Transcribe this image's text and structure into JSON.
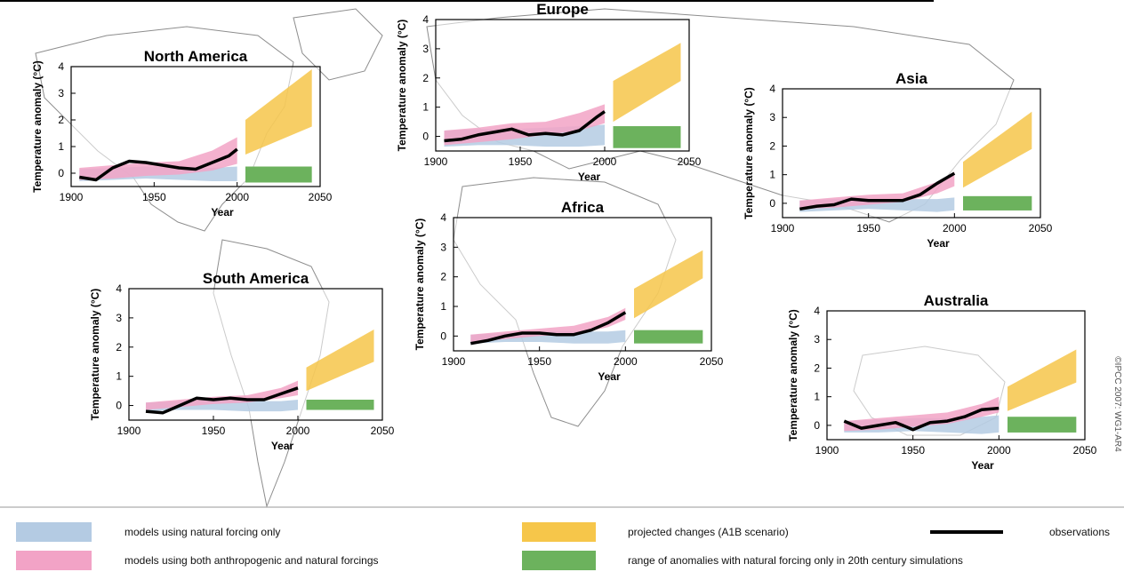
{
  "colors": {
    "natural": "#b4cbe3",
    "anthropogenic": "#f2a3c6",
    "projected": "#f6c64a",
    "natural_range": "#6cb25d",
    "observations": "#000000",
    "map": "#8d8d8d"
  },
  "legend": {
    "natural": "models using natural forcing only",
    "anthropogenic": "models using both anthropogenic and natural forcings",
    "projected": "projected changes (A1B scenario)",
    "natural_range": "range of anomalies with natural forcing only in 20th century simulations",
    "observations": "observations"
  },
  "credit": "©IPCC 2007: WG1-AR4",
  "chart_data": [
    {
      "type": "area",
      "title": "North America",
      "xlabel": "Year",
      "ylabel": "Temperature anomaly (°C)",
      "xlim": [
        1900,
        2050
      ],
      "ylim": [
        -0.5,
        4
      ],
      "xticks": [
        1900,
        1950,
        2000,
        2050
      ],
      "yticks": [
        0,
        1,
        2,
        3,
        4
      ],
      "observations": {
        "x": [
          1905,
          1915,
          1925,
          1935,
          1945,
          1955,
          1965,
          1975,
          1985,
          1995,
          2000
        ],
        "y": [
          -0.15,
          -0.25,
          0.2,
          0.45,
          0.4,
          0.3,
          0.2,
          0.15,
          0.4,
          0.65,
          0.9
        ]
      },
      "natural_band": {
        "x": [
          1905,
          1925,
          1945,
          1965,
          1985,
          2000
        ],
        "low": [
          -0.3,
          -0.25,
          -0.2,
          -0.25,
          -0.3,
          -0.3
        ],
        "high": [
          0.15,
          0.2,
          0.25,
          0.2,
          0.2,
          0.25
        ]
      },
      "anthro_band": {
        "x": [
          1905,
          1925,
          1945,
          1965,
          1985,
          2000
        ],
        "low": [
          -0.25,
          -0.2,
          -0.1,
          -0.05,
          0.1,
          0.35
        ],
        "high": [
          0.2,
          0.3,
          0.4,
          0.45,
          0.85,
          1.35
        ]
      },
      "projection": {
        "x": [
          2005,
          2045
        ],
        "low": [
          0.7,
          1.75
        ],
        "high": [
          2.0,
          3.9
        ]
      },
      "natural_range": [
        -0.35,
        0.25
      ]
    },
    {
      "type": "area",
      "title": "Europe",
      "xlabel": "Year",
      "ylabel": "Temperature anomaly (°C)",
      "xlim": [
        1900,
        2050
      ],
      "ylim": [
        -0.5,
        4
      ],
      "xticks": [
        1900,
        1950,
        2000,
        2050
      ],
      "yticks": [
        0,
        1,
        2,
        3,
        4
      ],
      "observations": {
        "x": [
          1905,
          1915,
          1925,
          1935,
          1945,
          1955,
          1965,
          1975,
          1985,
          1995,
          2000
        ],
        "y": [
          -0.15,
          -0.1,
          0.05,
          0.15,
          0.25,
          0.05,
          0.1,
          0.05,
          0.2,
          0.65,
          0.85
        ]
      },
      "natural_band": {
        "x": [
          1905,
          1925,
          1945,
          1965,
          1985,
          2000
        ],
        "low": [
          -0.35,
          -0.3,
          -0.3,
          -0.35,
          -0.35,
          -0.3
        ],
        "high": [
          0.2,
          0.25,
          0.25,
          0.3,
          0.35,
          0.4
        ]
      },
      "anthro_band": {
        "x": [
          1905,
          1925,
          1945,
          1965,
          1985,
          2000
        ],
        "low": [
          -0.3,
          -0.2,
          -0.1,
          0.05,
          0.2,
          0.45
        ],
        "high": [
          0.2,
          0.3,
          0.45,
          0.5,
          0.8,
          1.1
        ]
      },
      "projection": {
        "x": [
          2005,
          2045
        ],
        "low": [
          0.5,
          1.9
        ],
        "high": [
          1.9,
          3.2
        ]
      },
      "natural_range": [
        -0.4,
        0.35
      ]
    },
    {
      "type": "area",
      "title": "Asia",
      "xlabel": "Year",
      "ylabel": "Temperature anomaly (°C)",
      "xlim": [
        1900,
        2050
      ],
      "ylim": [
        -0.5,
        4
      ],
      "xticks": [
        1900,
        1950,
        2000,
        2050
      ],
      "yticks": [
        0,
        1,
        2,
        3,
        4
      ],
      "observations": {
        "x": [
          1910,
          1920,
          1930,
          1940,
          1950,
          1960,
          1970,
          1980,
          1990,
          2000
        ],
        "y": [
          -0.2,
          -0.1,
          -0.05,
          0.15,
          0.1,
          0.1,
          0.1,
          0.3,
          0.7,
          1.05
        ]
      },
      "natural_band": {
        "x": [
          1910,
          1930,
          1950,
          1970,
          1990,
          2000
        ],
        "low": [
          -0.3,
          -0.25,
          -0.2,
          -0.25,
          -0.3,
          -0.25
        ],
        "high": [
          0.1,
          0.15,
          0.15,
          0.15,
          0.15,
          0.2
        ]
      },
      "anthro_band": {
        "x": [
          1910,
          1930,
          1950,
          1970,
          1990,
          2000
        ],
        "low": [
          -0.2,
          -0.15,
          -0.05,
          0.05,
          0.35,
          0.6
        ],
        "high": [
          0.1,
          0.2,
          0.3,
          0.35,
          0.75,
          1.1
        ]
      },
      "projection": {
        "x": [
          2005,
          2045
        ],
        "low": [
          0.55,
          1.9
        ],
        "high": [
          1.45,
          3.2
        ]
      },
      "natural_range": [
        -0.25,
        0.25
      ]
    },
    {
      "type": "area",
      "title": "Africa",
      "xlabel": "Year",
      "ylabel": "Temperature anomaly (°C)",
      "xlim": [
        1900,
        2050
      ],
      "ylim": [
        -0.5,
        4
      ],
      "xticks": [
        1900,
        1950,
        2000,
        2050
      ],
      "yticks": [
        0,
        1,
        2,
        3,
        4
      ],
      "observations": {
        "x": [
          1910,
          1920,
          1930,
          1940,
          1950,
          1960,
          1970,
          1980,
          1990,
          2000
        ],
        "y": [
          -0.25,
          -0.15,
          0.0,
          0.1,
          0.1,
          0.05,
          0.05,
          0.2,
          0.45,
          0.8
        ]
      },
      "natural_band": {
        "x": [
          1910,
          1930,
          1950,
          1970,
          1990,
          2000
        ],
        "low": [
          -0.25,
          -0.2,
          -0.2,
          -0.25,
          -0.25,
          -0.2
        ],
        "high": [
          0.05,
          0.1,
          0.15,
          0.15,
          0.15,
          0.2
        ]
      },
      "anthro_band": {
        "x": [
          1910,
          1930,
          1950,
          1970,
          1990,
          2000
        ],
        "low": [
          -0.2,
          -0.1,
          0.0,
          0.05,
          0.3,
          0.55
        ],
        "high": [
          0.05,
          0.15,
          0.25,
          0.35,
          0.65,
          0.95
        ]
      },
      "projection": {
        "x": [
          2005,
          2045
        ],
        "low": [
          0.6,
          1.95
        ],
        "high": [
          1.6,
          2.9
        ]
      },
      "natural_range": [
        -0.25,
        0.2
      ]
    },
    {
      "type": "area",
      "title": "South America",
      "xlabel": "Year",
      "ylabel": "Temperature anomaly (°C)",
      "xlim": [
        1900,
        2050
      ],
      "ylim": [
        -0.5,
        4
      ],
      "xticks": [
        1900,
        1950,
        2000,
        2050
      ],
      "yticks": [
        0,
        1,
        2,
        3,
        4
      ],
      "observations": {
        "x": [
          1910,
          1920,
          1930,
          1940,
          1950,
          1960,
          1970,
          1980,
          1990,
          2000
        ],
        "y": [
          -0.2,
          -0.25,
          0.0,
          0.25,
          0.2,
          0.25,
          0.2,
          0.2,
          0.4,
          0.6
        ]
      },
      "natural_band": {
        "x": [
          1910,
          1930,
          1950,
          1970,
          1990,
          2000
        ],
        "low": [
          -0.2,
          -0.15,
          -0.15,
          -0.2,
          -0.2,
          -0.15
        ],
        "high": [
          0.1,
          0.15,
          0.2,
          0.15,
          0.15,
          0.2
        ]
      },
      "anthro_band": {
        "x": [
          1910,
          1930,
          1950,
          1970,
          1990,
          2000
        ],
        "low": [
          -0.15,
          -0.05,
          0.05,
          0.1,
          0.25,
          0.35
        ],
        "high": [
          0.1,
          0.2,
          0.3,
          0.35,
          0.6,
          0.85
        ]
      },
      "projection": {
        "x": [
          2005,
          2045
        ],
        "low": [
          0.5,
          1.5
        ],
        "high": [
          1.3,
          2.6
        ]
      },
      "natural_range": [
        -0.15,
        0.2
      ]
    },
    {
      "type": "area",
      "title": "Australia",
      "xlabel": "Year",
      "ylabel": "Temperature anomaly (°C)",
      "xlim": [
        1900,
        2050
      ],
      "ylim": [
        -0.5,
        4
      ],
      "xticks": [
        1900,
        1950,
        2000,
        2050
      ],
      "yticks": [
        0,
        1,
        2,
        3,
        4
      ],
      "observations": {
        "x": [
          1910,
          1920,
          1930,
          1940,
          1950,
          1960,
          1970,
          1980,
          1990,
          2000
        ],
        "y": [
          0.15,
          -0.1,
          0.0,
          0.1,
          -0.15,
          0.1,
          0.15,
          0.3,
          0.55,
          0.6
        ]
      },
      "natural_band": {
        "x": [
          1910,
          1930,
          1950,
          1970,
          1990,
          2000
        ],
        "low": [
          -0.25,
          -0.25,
          -0.2,
          -0.25,
          -0.3,
          -0.25
        ],
        "high": [
          0.15,
          0.2,
          0.25,
          0.25,
          0.3,
          0.35
        ]
      },
      "anthro_band": {
        "x": [
          1910,
          1930,
          1950,
          1970,
          1990,
          2000
        ],
        "low": [
          -0.2,
          -0.15,
          -0.05,
          0.05,
          0.3,
          0.45
        ],
        "high": [
          0.15,
          0.25,
          0.35,
          0.45,
          0.75,
          1.0
        ]
      },
      "projection": {
        "x": [
          2005,
          2045
        ],
        "low": [
          0.5,
          1.5
        ],
        "high": [
          1.35,
          2.65
        ]
      },
      "natural_range": [
        -0.25,
        0.3
      ]
    }
  ]
}
